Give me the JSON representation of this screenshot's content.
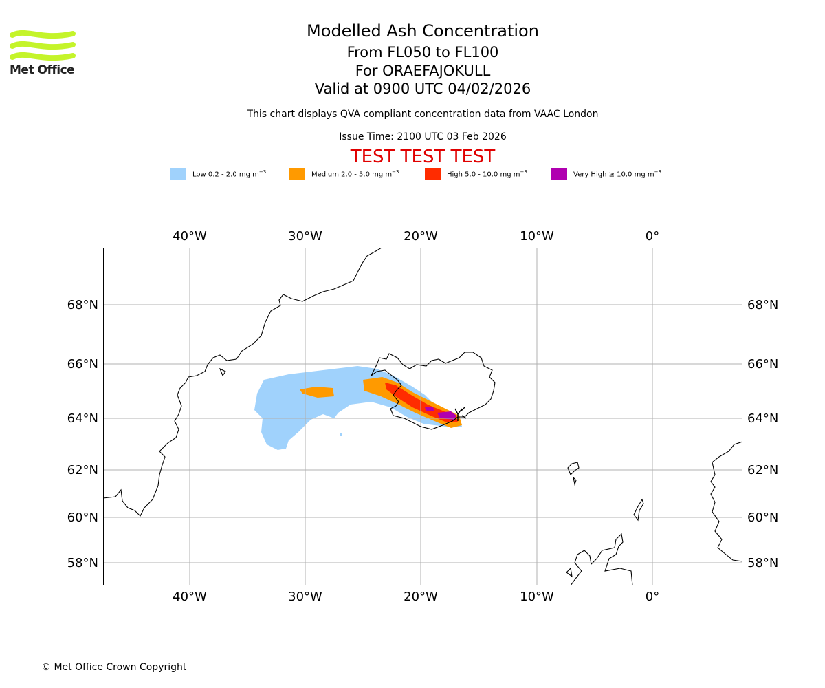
{
  "logo": {
    "name": "Met Office",
    "accent_color": "#c4f42a"
  },
  "titles": {
    "main": "Modelled Ash Concentration",
    "levels": "From FL050 to FL100",
    "volcano": "For ORAEFAJOKULL",
    "valid": "Valid at 0900 UTC 04/02/2026"
  },
  "subtitle": "This chart displays QVA compliant concentration data from VAAC London",
  "issue_time": "Issue Time: 2100 UTC 03 Feb 2026",
  "test_banner": "TEST TEST TEST",
  "legend": [
    {
      "label": "Low 0.2 - 2.0 mg m",
      "exp": "−3",
      "color": "#a0d2fc"
    },
    {
      "label": "Medium 2.0 - 5.0 mg m",
      "exp": "−3",
      "color": "#ff9a00"
    },
    {
      "label": "High 5.0 - 10.0 mg m",
      "exp": "−3",
      "color": "#ff2c00"
    },
    {
      "label": "Very High  ≥  10.0 mg m",
      "exp": "−3",
      "color": "#b000b0"
    }
  ],
  "axes": {
    "lon_labels": [
      "40°W",
      "30°W",
      "20°W",
      "10°W",
      "0°"
    ],
    "lat_labels": [
      "68°N",
      "66°N",
      "64°N",
      "62°N",
      "60°N",
      "58°N"
    ]
  },
  "copyright": "© Met Office Crown Copyright"
}
